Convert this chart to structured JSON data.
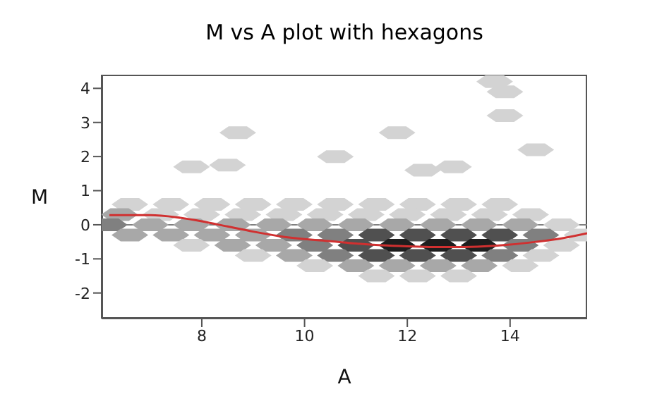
{
  "chart_data": {
    "type": "scatter",
    "title": "M vs A plot with hexagons",
    "xlabel": "A",
    "ylabel": "M",
    "xlim": [
      6.05,
      15.5
    ],
    "ylim": [
      -2.75,
      4.4
    ],
    "xticks": [
      8,
      10,
      12,
      14
    ],
    "yticks": [
      -2,
      -1,
      0,
      1,
      2,
      3,
      4
    ],
    "marker": "none",
    "ref_lines": [
      {
        "axis": "y",
        "value": 0,
        "color": "#808080"
      }
    ],
    "series": [
      {
        "x": [
          6.6,
          7.4,
          8.2,
          9,
          9.8,
          10.6,
          11.4,
          12.2,
          13,
          13.8,
          6.4,
          7.2,
          8,
          8.8,
          9.6,
          10.4,
          11.2,
          12,
          12.8,
          13.6,
          14.4,
          6.2,
          7,
          7.8,
          8.6,
          9.4,
          10.2,
          11,
          11.8,
          12.6,
          13.4,
          14.2,
          15,
          6.6,
          7.4,
          8.2,
          9,
          9.8,
          10.6,
          11.4,
          12.2,
          13,
          13.8,
          14.6,
          15.4,
          7.8,
          8.6,
          9.4,
          10.2,
          11,
          11.8,
          12.6,
          13.4,
          14.2,
          15,
          9,
          9.8,
          10.6,
          11.4,
          12.2,
          13,
          13.8,
          14.6,
          10.2,
          11,
          11.8,
          12.6,
          13.4,
          14.2,
          11.4,
          12.2,
          13,
          7.8,
          8.5,
          8.7,
          10.6,
          12.3,
          12.9,
          13.9,
          14.5,
          13.7,
          13.9,
          11.8
        ],
        "values": [
          0.6,
          0.6,
          0.6,
          0.6,
          0.6,
          0.6,
          0.6,
          0.6,
          0.6,
          0.6,
          0.3,
          0.3,
          0.3,
          0.3,
          0.3,
          0.3,
          0.3,
          0.3,
          0.3,
          0.3,
          0.3,
          0,
          0,
          0,
          0,
          0,
          0,
          0,
          0,
          0,
          0,
          0,
          0,
          -0.3,
          -0.3,
          -0.3,
          -0.3,
          -0.3,
          -0.3,
          -0.3,
          -0.3,
          -0.3,
          -0.3,
          -0.3,
          -0.3,
          -0.6,
          -0.6,
          -0.6,
          -0.6,
          -0.6,
          -0.6,
          -0.6,
          -0.6,
          -0.6,
          -0.6,
          -0.9,
          -0.9,
          -0.9,
          -0.9,
          -0.9,
          -0.9,
          -0.9,
          -0.9,
          -1.2,
          -1.2,
          -1.2,
          -1.2,
          -1.2,
          -1.2,
          -1.5,
          -1.5,
          -1.5,
          1.7,
          1.75,
          2.7,
          2,
          1.6,
          1.7,
          3.2,
          2.2,
          4.2,
          3.9,
          2.7
        ],
        "colors": [
          "#d3d3d3",
          "#d3d3d3",
          "#d3d3d3",
          "#d3d3d3",
          "#d3d3d3",
          "#d3d3d3",
          "#d3d3d3",
          "#d3d3d3",
          "#d3d3d3",
          "#d3d3d3",
          "#a8a8a8",
          "#d3d3d3",
          "#d3d3d3",
          "#d3d3d3",
          "#d3d3d3",
          "#d3d3d3",
          "#d3d3d3",
          "#d3d3d3",
          "#d3d3d3",
          "#d3d3d3",
          "#d3d3d3",
          "#808080",
          "#a8a8a8",
          "#a8a8a8",
          "#a8a8a8",
          "#a8a8a8",
          "#a8a8a8",
          "#a8a8a8",
          "#a8a8a8",
          "#a8a8a8",
          "#a8a8a8",
          "#a8a8a8",
          "#d3d3d3",
          "#a8a8a8",
          "#a8a8a8",
          "#a8a8a8",
          "#a8a8a8",
          "#808080",
          "#808080",
          "#505050",
          "#505050",
          "#505050",
          "#505050",
          "#808080",
          "#d3d3d3",
          "#d3d3d3",
          "#a8a8a8",
          "#a8a8a8",
          "#808080",
          "#505050",
          "#1e1e1e",
          "#1e1e1e",
          "#1e1e1e",
          "#808080",
          "#d3d3d3",
          "#d3d3d3",
          "#a8a8a8",
          "#808080",
          "#505050",
          "#505050",
          "#505050",
          "#808080",
          "#d3d3d3",
          "#d3d3d3",
          "#a8a8a8",
          "#a8a8a8",
          "#a8a8a8",
          "#a8a8a8",
          "#d3d3d3",
          "#d3d3d3",
          "#d3d3d3",
          "#d3d3d3",
          "#d3d3d3",
          "#d3d3d3",
          "#d3d3d3",
          "#d3d3d3",
          "#d3d3d3",
          "#d3d3d3",
          "#d3d3d3",
          "#d3d3d3",
          "#d3d3d3",
          "#d3d3d3",
          "#d3d3d3"
        ]
      },
      {
        "type": "line",
        "color": "#d03030",
        "line_style": "solid",
        "x": [
          6.2,
          7,
          7.5,
          8,
          8.5,
          9,
          9.5,
          10,
          10.5,
          11,
          11.5,
          12,
          12.5,
          13,
          13.5,
          14,
          14.5,
          15,
          15.5
        ],
        "values": [
          0.28,
          0.28,
          0.22,
          0.1,
          -0.05,
          -0.2,
          -0.33,
          -0.42,
          -0.48,
          -0.55,
          -0.6,
          -0.63,
          -0.65,
          -0.65,
          -0.63,
          -0.58,
          -0.5,
          -0.4,
          -0.25
        ]
      }
    ]
  }
}
